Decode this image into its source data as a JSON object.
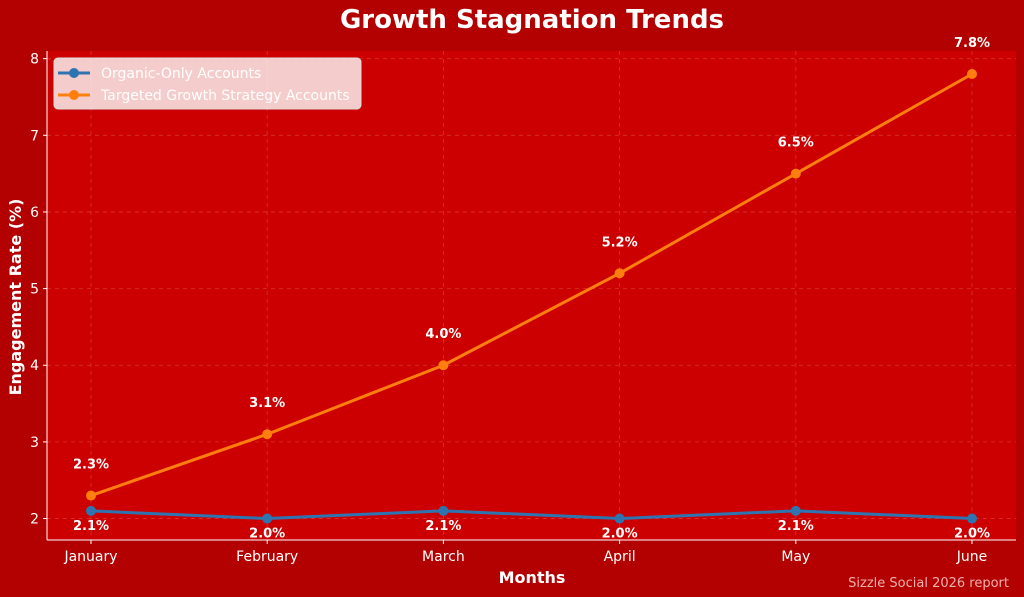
{
  "chart_data": {
    "type": "line",
    "title": "Growth Stagnation Trends",
    "xlabel": "Months",
    "ylabel": "Engagement Rate (%)",
    "categories": [
      "January",
      "February",
      "March",
      "April",
      "May",
      "June"
    ],
    "ylim": [
      1.72,
      8.1
    ],
    "yticks": [
      2,
      3,
      4,
      5,
      6,
      7,
      8
    ],
    "grid": true,
    "legend_position": "top-left",
    "series": [
      {
        "name": "Organic-Only Accounts",
        "values": [
          2.1,
          2.0,
          2.1,
          2.0,
          2.1,
          2.0
        ],
        "labels": [
          "2.1%",
          "2.0%",
          "2.1%",
          "2.0%",
          "2.1%",
          "2.0%"
        ],
        "color": "#2e74b0",
        "label_position": "below"
      },
      {
        "name": "Targeted Growth Strategy Accounts",
        "values": [
          2.3,
          3.1,
          4.0,
          5.2,
          6.5,
          7.8
        ],
        "labels": [
          "2.3%",
          "3.1%",
          "4.0%",
          "5.2%",
          "6.5%",
          "7.8%"
        ],
        "color": "#ff7f0e",
        "label_position": "above"
      }
    ],
    "background": "#b30000",
    "plot_background": "#cc0000"
  },
  "footer": {
    "text": "Sizzle Social 2026 report"
  }
}
